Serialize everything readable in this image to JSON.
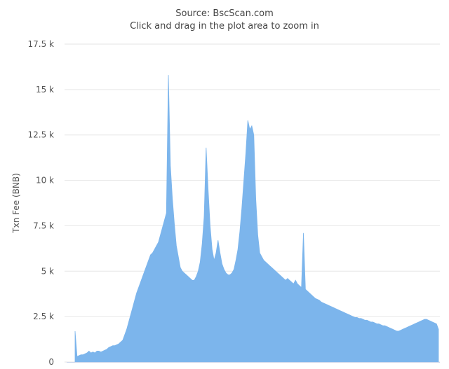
{
  "chart_data": {
    "type": "area",
    "title": "",
    "subtitle_lines": [
      "Source: BscScan.com",
      "Click and drag in the plot area to zoom in"
    ],
    "xlabel": "",
    "ylabel": "Txn Fee (BNB)",
    "ylim": [
      0,
      17500
    ],
    "yticks": [
      {
        "value": 0,
        "label": "0"
      },
      {
        "value": 2500,
        "label": "2.5 k"
      },
      {
        "value": 5000,
        "label": "5 k"
      },
      {
        "value": 7500,
        "label": "7.5 k"
      },
      {
        "value": 10000,
        "label": "10 k"
      },
      {
        "value": 12500,
        "label": "12.5 k"
      },
      {
        "value": 15000,
        "label": "15 k"
      },
      {
        "value": 17500,
        "label": "17.5 k"
      }
    ],
    "grid": true,
    "legend": "none",
    "color": "#7cb5ec",
    "series": [
      {
        "values": [
          1700,
          300,
          350,
          400,
          400,
          450,
          500,
          600,
          500,
          550,
          500,
          600,
          600,
          550,
          600,
          650,
          700,
          800,
          850,
          900,
          900,
          950,
          1000,
          1100,
          1200,
          1500,
          1800,
          2200,
          2600,
          3000,
          3400,
          3800,
          4100,
          4400,
          4700,
          5000,
          5300,
          5600,
          5900,
          6000,
          6200,
          6400,
          6600,
          7000,
          7400,
          7800,
          8200,
          15800,
          10800,
          9000,
          7600,
          6400,
          5800,
          5200,
          5000,
          4900,
          4800,
          4700,
          4600,
          4500,
          4500,
          4700,
          5000,
          5500,
          6500,
          8000,
          11800,
          9500,
          7500,
          6200,
          5600,
          6000,
          6700,
          6000,
          5400,
          5100,
          4900,
          4800,
          4800,
          4900,
          5100,
          5600,
          6200,
          7200,
          8500,
          10000,
          11500,
          13300,
          12800,
          13000,
          12500,
          9000,
          7000,
          6000,
          5800,
          5600,
          5500,
          5400,
          5300,
          5200,
          5100,
          5000,
          4900,
          4800,
          4700,
          4600,
          4500,
          4600,
          4500,
          4400,
          4300,
          4500,
          4300,
          4200,
          4100,
          7100,
          4000,
          3900,
          3800,
          3700,
          3600,
          3500,
          3450,
          3400,
          3300,
          3250,
          3200,
          3150,
          3100,
          3050,
          3000,
          2950,
          2900,
          2850,
          2800,
          2750,
          2700,
          2650,
          2600,
          2550,
          2500,
          2450,
          2450,
          2400,
          2400,
          2350,
          2300,
          2300,
          2250,
          2200,
          2200,
          2150,
          2100,
          2100,
          2050,
          2000,
          2000,
          1950,
          1900,
          1850,
          1800,
          1750,
          1700,
          1700,
          1750,
          1800,
          1850,
          1900,
          1950,
          2000,
          2050,
          2100,
          2150,
          2200,
          2250,
          2300,
          2350,
          2350,
          2300,
          2250,
          2200,
          2150,
          2100,
          1800
        ]
      }
    ]
  }
}
